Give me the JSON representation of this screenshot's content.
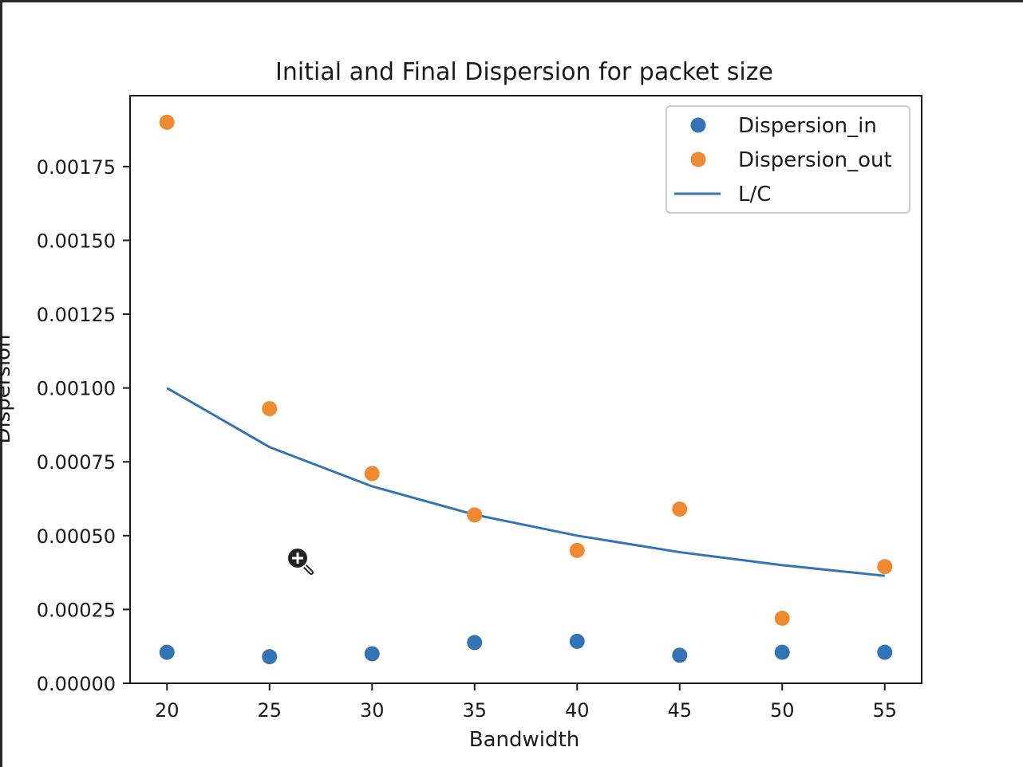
{
  "chart_data": {
    "type": "scatter",
    "title": "Initial and Final Dispersion for packet size",
    "xlabel": "Bandwidth",
    "ylabel": "Dispersion",
    "x": [
      20,
      25,
      30,
      35,
      40,
      45,
      50,
      55
    ],
    "xticks": [
      "20",
      "25",
      "30",
      "35",
      "40",
      "45",
      "50",
      "55"
    ],
    "yticks": [
      "0.00000",
      "0.00025",
      "0.00050",
      "0.00075",
      "0.00100",
      "0.00125",
      "0.00150",
      "0.00175"
    ],
    "ytick_values": [
      0,
      0.00025,
      0.0005,
      0.00075,
      0.001,
      0.00125,
      0.0015,
      0.00175
    ],
    "xlim": [
      18.2,
      56.8
    ],
    "ylim": [
      0,
      0.00199
    ],
    "grid": false,
    "legend_position": "top-right",
    "series": [
      {
        "name": "Dispersion_in",
        "kind": "scatter",
        "color": "#3274b5",
        "values": [
          0.000105,
          9e-05,
          0.0001,
          0.000138,
          0.000142,
          9.5e-05,
          0.000105,
          0.000105
        ]
      },
      {
        "name": "Dispersion_out",
        "kind": "scatter",
        "color": "#ef8a30",
        "values": [
          0.0019,
          0.00093,
          0.00071,
          0.00057,
          0.00045,
          0.00059,
          0.00022,
          0.000395
        ]
      },
      {
        "name": "L/C",
        "kind": "line",
        "color": "#3274b5",
        "values": [
          0.001,
          0.0008,
          0.000667,
          0.000571,
          0.0005,
          0.000444,
          0.0004,
          0.000364
        ]
      }
    ]
  },
  "cursor": {
    "icon": "zoom-in-icon"
  }
}
